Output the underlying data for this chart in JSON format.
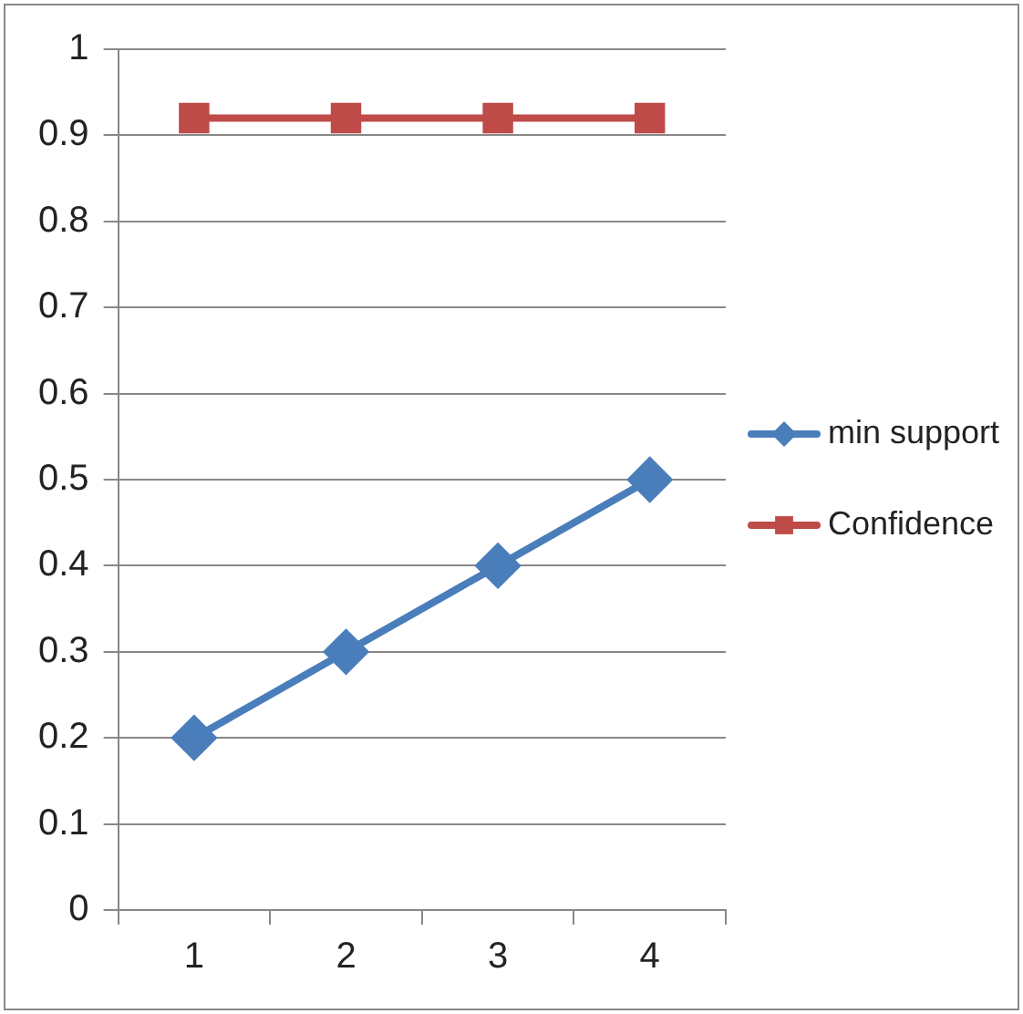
{
  "chart_data": {
    "type": "line",
    "categories": [
      "1",
      "2",
      "3",
      "4"
    ],
    "series": [
      {
        "name": "min support",
        "color": "#4a7ebb",
        "values": [
          0.2,
          0.3,
          0.4,
          0.5
        ],
        "marker": "diamond"
      },
      {
        "name": "Confidence",
        "color": "#be4b48",
        "values": [
          0.92,
          0.92,
          0.92,
          0.92
        ],
        "marker": "square"
      }
    ],
    "ylim": [
      0,
      1
    ],
    "yticks": [
      0,
      0.1,
      0.2,
      0.3,
      0.4,
      0.5,
      0.6,
      0.7,
      0.8,
      0.9,
      1
    ],
    "grid": "y",
    "legend": "right"
  }
}
